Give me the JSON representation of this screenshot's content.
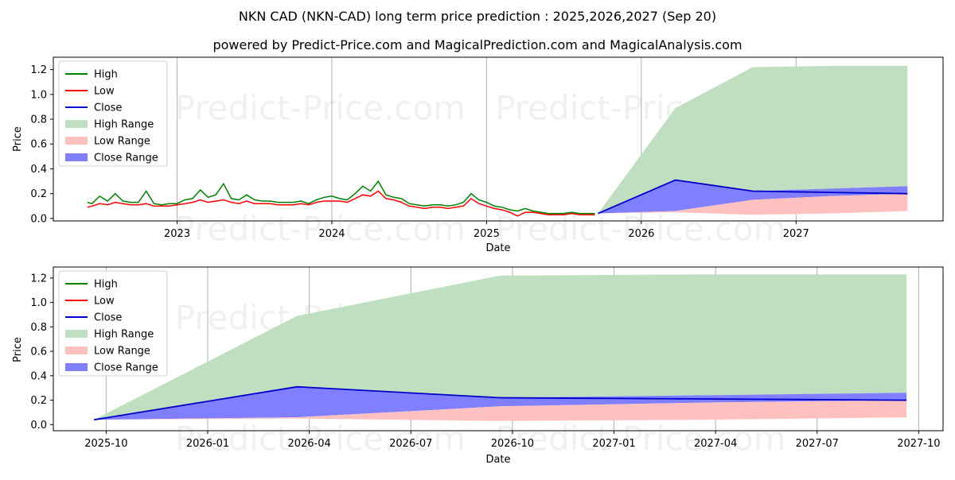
{
  "title": "NKN CAD (NKN-CAD) long term price prediction : 2025,2026,2027 (Sep 20)",
  "subtitle": "powered by Predict-Price.com and MagicalPrediction.com and MagicalAnalysis.com",
  "watermark": "Predict-Price.com",
  "colors": {
    "high": "#008000",
    "low": "#ff0000",
    "close": "#0000cc",
    "high_range": "#c0dfc0",
    "low_range": "#ffc0c0",
    "close_range": "#7f7fff"
  },
  "legend": [
    "High",
    "Low",
    "Close",
    "High Range",
    "Low Range",
    "Close Range"
  ],
  "chart_data": [
    {
      "type": "line",
      "name": "long-term",
      "xlabel": "Date",
      "ylabel": "Price",
      "ylim": [
        -0.02,
        1.3
      ],
      "xlim": [
        2022.2,
        2027.95
      ],
      "yticks": [
        "0.0",
        "0.2",
        "0.4",
        "0.6",
        "0.8",
        "1.0",
        "1.2"
      ],
      "ytick_values": [
        0,
        0.2,
        0.4,
        0.6,
        0.8,
        1.0,
        1.2
      ],
      "xticks": [
        "2023",
        "2024",
        "2025",
        "2026",
        "2027"
      ],
      "xtick_values": [
        2023,
        2024,
        2025,
        2026,
        2027
      ],
      "history": {
        "x": [
          2022.42,
          2022.45,
          2022.5,
          2022.55,
          2022.6,
          2022.65,
          2022.7,
          2022.75,
          2022.8,
          2022.85,
          2022.9,
          2022.95,
          2023.0,
          2023.05,
          2023.1,
          2023.15,
          2023.2,
          2023.25,
          2023.3,
          2023.35,
          2023.4,
          2023.45,
          2023.5,
          2023.55,
          2023.6,
          2023.65,
          2023.7,
          2023.75,
          2023.8,
          2023.85,
          2023.9,
          2023.95,
          2024.0,
          2024.05,
          2024.1,
          2024.15,
          2024.2,
          2024.25,
          2024.3,
          2024.35,
          2024.4,
          2024.45,
          2024.5,
          2024.55,
          2024.6,
          2024.65,
          2024.7,
          2024.75,
          2024.8,
          2024.85,
          2024.9,
          2024.95,
          2025.0,
          2025.05,
          2025.1,
          2025.15,
          2025.2,
          2025.25,
          2025.3,
          2025.35,
          2025.4,
          2025.45,
          2025.5,
          2025.55,
          2025.6,
          2025.65,
          2025.7
        ],
        "high": [
          0.13,
          0.12,
          0.18,
          0.14,
          0.2,
          0.14,
          0.13,
          0.13,
          0.22,
          0.12,
          0.11,
          0.12,
          0.12,
          0.15,
          0.16,
          0.23,
          0.17,
          0.19,
          0.28,
          0.16,
          0.15,
          0.19,
          0.15,
          0.14,
          0.14,
          0.13,
          0.13,
          0.13,
          0.14,
          0.12,
          0.15,
          0.17,
          0.18,
          0.16,
          0.15,
          0.2,
          0.26,
          0.22,
          0.3,
          0.19,
          0.17,
          0.16,
          0.12,
          0.11,
          0.1,
          0.11,
          0.11,
          0.1,
          0.11,
          0.13,
          0.2,
          0.15,
          0.13,
          0.1,
          0.09,
          0.07,
          0.06,
          0.08,
          0.06,
          0.05,
          0.04,
          0.04,
          0.04,
          0.05,
          0.04,
          0.04,
          0.04
        ],
        "low": [
          0.09,
          0.1,
          0.12,
          0.11,
          0.13,
          0.12,
          0.11,
          0.11,
          0.12,
          0.1,
          0.1,
          0.1,
          0.11,
          0.12,
          0.13,
          0.15,
          0.13,
          0.14,
          0.15,
          0.13,
          0.12,
          0.14,
          0.12,
          0.12,
          0.12,
          0.11,
          0.11,
          0.11,
          0.12,
          0.11,
          0.13,
          0.14,
          0.14,
          0.14,
          0.13,
          0.16,
          0.19,
          0.18,
          0.22,
          0.16,
          0.15,
          0.13,
          0.1,
          0.09,
          0.08,
          0.09,
          0.09,
          0.08,
          0.09,
          0.1,
          0.16,
          0.12,
          0.1,
          0.08,
          0.07,
          0.05,
          0.02,
          0.05,
          0.05,
          0.04,
          0.03,
          0.03,
          0.03,
          0.04,
          0.03,
          0.03,
          0.03
        ]
      },
      "forecast": {
        "x": [
          2025.72,
          2026.22,
          2026.72,
          2027.22,
          2027.72
        ],
        "close": [
          0.04,
          0.31,
          0.22,
          0.21,
          0.2
        ],
        "high_range": [
          0.04,
          0.89,
          1.22,
          1.23,
          1.23
        ],
        "low_range": [
          0.04,
          0.06,
          0.15,
          0.18,
          0.2
        ],
        "close_range_top": [
          0.04,
          0.31,
          0.22,
          0.24,
          0.26
        ],
        "low_range_bottom": [
          0.04,
          0.05,
          0.03,
          0.04,
          0.06
        ],
        "close_range_bottom": [
          0.04,
          0.06,
          0.15,
          0.18,
          0.2
        ]
      }
    },
    {
      "type": "line",
      "name": "forecast-detail",
      "xlabel": "Date",
      "ylabel": "Price",
      "ylim": [
        -0.05,
        1.29
      ],
      "xlim": [
        2025.62,
        2027.81
      ],
      "yticks": [
        "0.0",
        "0.2",
        "0.4",
        "0.6",
        "0.8",
        "1.0",
        "1.2"
      ],
      "ytick_values": [
        0,
        0.2,
        0.4,
        0.6,
        0.8,
        1.0,
        1.2
      ],
      "xticks": [
        "2025-10",
        "2026-01",
        "2026-04",
        "2026-07",
        "2026-10",
        "2027-01",
        "2027-04",
        "2027-07",
        "2027-10"
      ],
      "xtick_values": [
        2025.75,
        2026.0,
        2026.25,
        2026.5,
        2026.75,
        2027.0,
        2027.25,
        2027.5,
        2027.75
      ],
      "forecast": {
        "x": [
          2025.72,
          2026.22,
          2026.72,
          2027.22,
          2027.72
        ],
        "close": [
          0.04,
          0.31,
          0.22,
          0.21,
          0.2
        ],
        "high_range": [
          0.04,
          0.89,
          1.22,
          1.23,
          1.23
        ],
        "low_range": [
          0.04,
          0.06,
          0.15,
          0.18,
          0.2
        ],
        "close_range_top": [
          0.04,
          0.31,
          0.22,
          0.24,
          0.26
        ],
        "low_range_bottom": [
          0.04,
          0.05,
          0.03,
          0.04,
          0.06
        ],
        "close_range_bottom": [
          0.04,
          0.06,
          0.15,
          0.18,
          0.2
        ]
      }
    }
  ]
}
